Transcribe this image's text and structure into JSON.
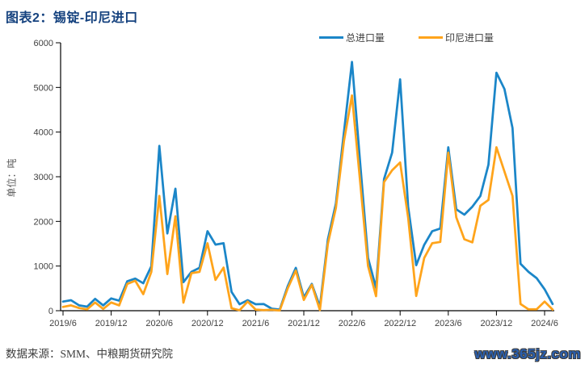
{
  "header": {
    "title": "图表2：锡锭-印尼进口"
  },
  "legend": [
    {
      "label": "总进口量",
      "color": "#1b86c8"
    },
    {
      "label": "印尼进口量",
      "color": "#ffa41b"
    }
  ],
  "footer": {
    "source": "数据来源：SMM、中粮期货研究院",
    "watermark": "www.365jz.com"
  },
  "colors": {
    "title_blue": "#15427f",
    "series_total": "#1b86c8",
    "series_indonesia": "#ffa41b",
    "axis_text": "#404040",
    "watermark_blue": "#2a5faf"
  },
  "chart_data": {
    "type": "line",
    "title": "图表2：锡锭-印尼进口",
    "xlabel": "",
    "ylabel": "单位：吨",
    "ylim": [
      0,
      6000
    ],
    "ytick_interval": 1000,
    "grid": false,
    "legend_position": "top-right",
    "x_tick_labels": [
      "2019/6",
      "2019/12",
      "2020/6",
      "2020/12",
      "2021/6",
      "2021/12",
      "2022/6",
      "2022/12",
      "2023/6",
      "2023/12",
      "2024/6"
    ],
    "x": [
      "2019/6",
      "2019/7",
      "2019/8",
      "2019/9",
      "2019/10",
      "2019/11",
      "2019/12",
      "2020/1",
      "2020/2",
      "2020/3",
      "2020/4",
      "2020/5",
      "2020/6",
      "2020/7",
      "2020/8",
      "2020/9",
      "2020/10",
      "2020/11",
      "2020/12",
      "2021/1",
      "2021/2",
      "2021/3",
      "2021/4",
      "2021/5",
      "2021/6",
      "2021/7",
      "2021/8",
      "2021/9",
      "2021/10",
      "2021/11",
      "2021/12",
      "2022/1",
      "2022/2",
      "2022/3",
      "2022/4",
      "2022/5",
      "2022/6",
      "2022/7",
      "2022/8",
      "2022/9",
      "2022/10",
      "2022/11",
      "2022/12",
      "2023/1",
      "2023/2",
      "2023/3",
      "2023/4",
      "2023/5",
      "2023/6",
      "2023/7",
      "2023/8",
      "2023/9",
      "2023/10",
      "2023/11",
      "2023/12",
      "2024/1",
      "2024/2",
      "2024/3",
      "2024/4",
      "2024/5",
      "2024/6",
      "2024/7"
    ],
    "series": [
      {
        "name": "总进口量",
        "color": "#1b86c8",
        "values": [
          205,
          235,
          120,
          90,
          265,
          120,
          275,
          225,
          660,
          720,
          615,
          995,
          3690,
          1730,
          2730,
          640,
          870,
          960,
          1780,
          1480,
          1510,
          420,
          145,
          235,
          145,
          150,
          45,
          25,
          550,
          960,
          300,
          600,
          90,
          1600,
          2400,
          4000,
          5570,
          3360,
          1180,
          510,
          2950,
          3540,
          5180,
          2330,
          1020,
          1475,
          1780,
          1840,
          3660,
          2270,
          2150,
          2330,
          2570,
          3270,
          5330,
          4965,
          4090,
          1050,
          870,
          730,
          480,
          150
        ]
      },
      {
        "name": "印尼进口量",
        "color": "#ffa41b",
        "values": [
          85,
          120,
          60,
          30,
          185,
          40,
          185,
          120,
          600,
          670,
          370,
          870,
          2570,
          820,
          2115,
          180,
          840,
          870,
          1510,
          690,
          965,
          55,
          10,
          205,
          25,
          15,
          20,
          5,
          500,
          900,
          240,
          580,
          15,
          1500,
          2300,
          3800,
          4820,
          2930,
          1000,
          325,
          2880,
          3145,
          3320,
          2090,
          330,
          1180,
          1510,
          1540,
          3540,
          2090,
          1600,
          1530,
          2350,
          2480,
          3660,
          3115,
          2570,
          150,
          30,
          30,
          205,
          25
        ]
      }
    ]
  }
}
